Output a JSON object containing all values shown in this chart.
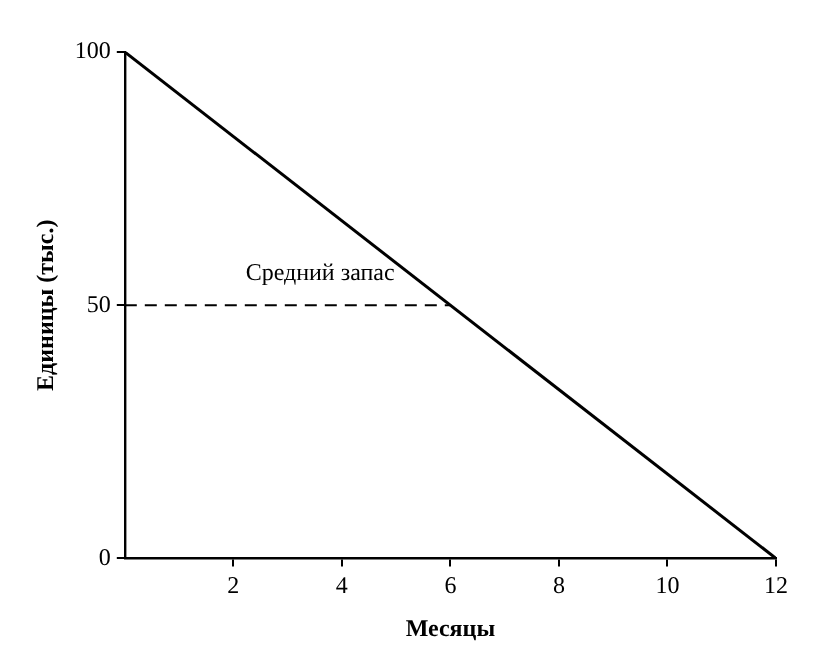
{
  "chart_data": {
    "type": "line",
    "xlabel": "Месяцы",
    "ylabel": "Единицы (тыс.)",
    "x": [
      0,
      12
    ],
    "series": [
      {
        "color": "#000000",
        "values": [
          100,
          0
        ]
      }
    ],
    "xlim": [
      0,
      12
    ],
    "xticks": [
      2,
      4,
      6,
      8,
      10,
      12
    ],
    "ylim": [
      0,
      100
    ],
    "yticks": [
      0,
      50,
      100
    ],
    "ref_lines": [
      {
        "axis": "y",
        "value": 50,
        "label": "Средний запас",
        "line_style": "dashed",
        "color": "#000000"
      }
    ],
    "grid": false,
    "legend": false,
    "marker": "none",
    "line_style": "solid"
  }
}
